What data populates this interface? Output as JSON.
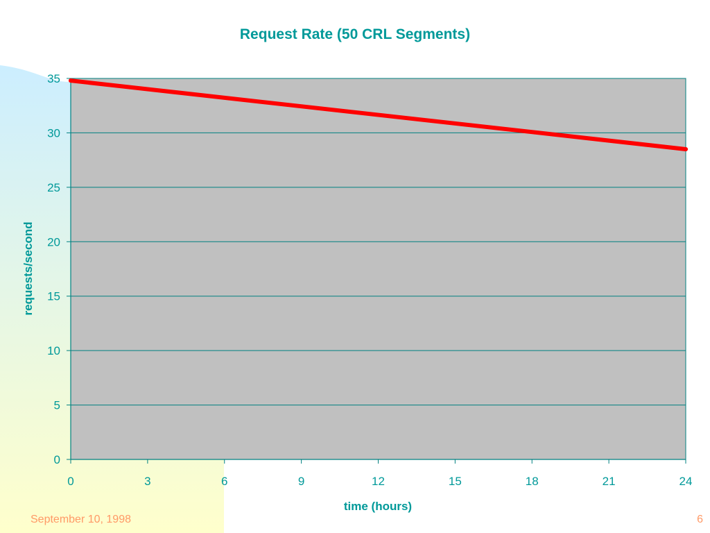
{
  "colors": {
    "title": "#009999",
    "axis_text": "#009999",
    "plot_bg": "#c0c0c0",
    "gridline": "#008080",
    "series_line": "#ff0000",
    "footer": "#ff9966",
    "gradient_top": "#cceeff",
    "gradient_bottom": "#ffffcc"
  },
  "footer": {
    "date": "September 10, 1998",
    "page": "6"
  },
  "chart_data": {
    "type": "line",
    "title": "Request Rate (50 CRL Segments)",
    "xlabel": "time (hours)",
    "ylabel": "requests/second",
    "xlim": [
      0,
      24
    ],
    "ylim": [
      0,
      35
    ],
    "xticks": [
      0,
      3,
      6,
      9,
      12,
      15,
      18,
      21,
      24
    ],
    "yticks": [
      0,
      5,
      10,
      15,
      20,
      25,
      30,
      35
    ],
    "grid": true,
    "legend": "none",
    "series": [
      {
        "x": [
          0,
          24
        ],
        "values": [
          34.8,
          28.5
        ]
      }
    ]
  }
}
